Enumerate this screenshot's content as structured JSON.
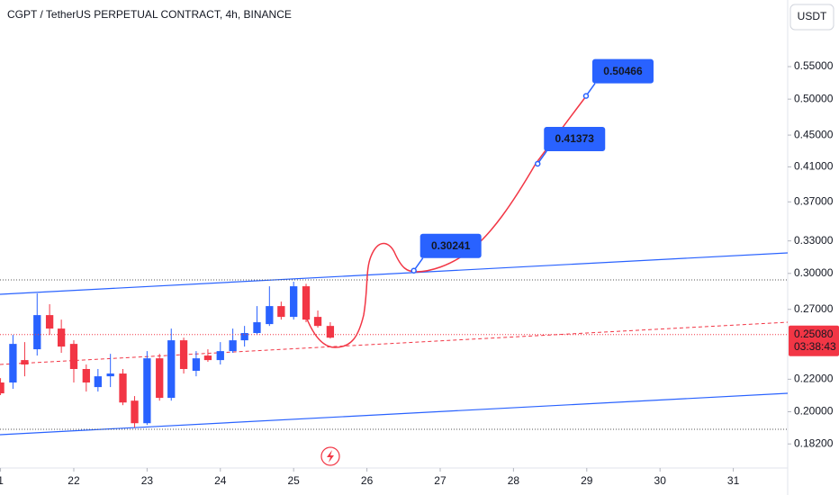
{
  "chart_data": {
    "type": "candlestick",
    "title": "CGPT / TetherUS PERPETUAL CONTRACT, 4h, BINANCE",
    "currency": "USDT",
    "log_scale": true,
    "grid": false,
    "up_color": "#2962ff",
    "down_color": "#f23645",
    "x": [
      21,
      21.17,
      21.33,
      21.5,
      21.67,
      21.83,
      22,
      22.17,
      22.33,
      22.5,
      22.67,
      22.83,
      23,
      23.17,
      23.33,
      23.5,
      23.67,
      23.83,
      24,
      24.17,
      24.33,
      24.5,
      24.67,
      24.83,
      25,
      25.17,
      25.33,
      25.5
    ],
    "open": [
      0.2179,
      0.2179,
      0.2327,
      0.2402,
      0.2655,
      0.2552,
      0.244,
      0.2267,
      0.215,
      0.2219,
      0.2237,
      0.2066,
      0.1934,
      0.2339,
      0.2083,
      0.2466,
      0.2255,
      0.2358,
      0.2327,
      0.2389,
      0.2466,
      0.2519,
      0.2586,
      0.2726,
      0.2641,
      0.2889,
      0.2641,
      0.2572
    ],
    "high": [
      0.2207,
      0.2505,
      0.2453,
      0.2829,
      0.2741,
      0.262,
      0.2466,
      0.2297,
      0.2267,
      0.237,
      0.2267,
      0.2094,
      0.2389,
      0.237,
      0.2552,
      0.2485,
      0.2389,
      0.2402,
      0.2453,
      0.2552,
      0.2572,
      0.2726,
      0.2889,
      0.2762,
      0.2928,
      0.291,
      0.2691,
      0.26
    ],
    "low": [
      0.21,
      0.2139,
      0.2219,
      0.2358,
      0.2505,
      0.2377,
      0.2179,
      0.2122,
      0.2122,
      0.215,
      0.2039,
      0.1909,
      0.1924,
      0.2066,
      0.2066,
      0.2237,
      0.2219,
      0.2315,
      0.2297,
      0.2377,
      0.2421,
      0.2505,
      0.2572,
      0.262,
      0.262,
      0.26,
      0.2559,
      0.2479
    ],
    "close": [
      0.2111,
      0.244,
      0.2297,
      0.2655,
      0.2552,
      0.2421,
      0.2267,
      0.2179,
      0.2219,
      0.2237,
      0.2055,
      0.1934,
      0.2339,
      0.2083,
      0.2466,
      0.2267,
      0.2339,
      0.2327,
      0.2389,
      0.2466,
      0.2519,
      0.26,
      0.2726,
      0.2641,
      0.2889,
      0.262,
      0.2572,
      0.2485
    ],
    "xlim": [
      20.993,
      31.742
    ],
    "xticks": [
      {
        "value": 21,
        "label": "1"
      },
      22,
      23,
      24,
      25,
      26,
      27,
      28,
      29,
      30,
      31
    ],
    "ylim": [
      0.1696,
      0.6686
    ],
    "yticks": [
      {
        "value": 0.55,
        "label": "0.55000"
      },
      {
        "value": 0.5,
        "label": "0.50000"
      },
      {
        "value": 0.45,
        "label": "0.45000"
      },
      {
        "value": 0.41,
        "label": "0.41000"
      },
      {
        "value": 0.37,
        "label": "0.37000"
      },
      {
        "value": 0.33,
        "label": "0.33000"
      },
      {
        "value": 0.3,
        "label": "0.30000"
      },
      {
        "value": 0.27,
        "label": "0.27000"
      },
      {
        "value": 0.22,
        "label": "0.22000"
      },
      {
        "value": 0.2,
        "label": "0.20000"
      },
      {
        "value": 0.182,
        "label": "0.18200"
      }
    ],
    "last_price": {
      "value": 0.2508,
      "label": "0.25080"
    },
    "countdown": "03:38:43",
    "targets": [
      {
        "x": 26.64,
        "value": 0.30241
      },
      {
        "x": 28.33,
        "value": 0.41373
      },
      {
        "x": 28.99,
        "value": 0.50466
      }
    ]
  }
}
